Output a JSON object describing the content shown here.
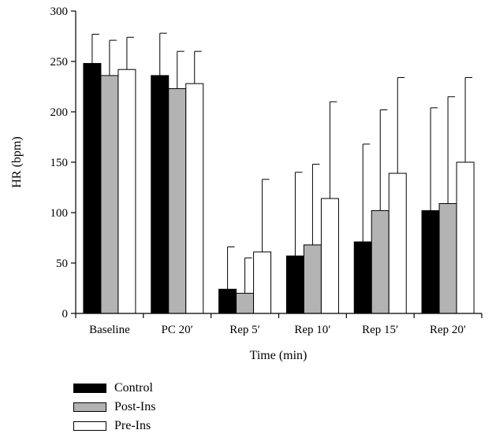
{
  "chart_data": {
    "type": "bar",
    "title": "",
    "xlabel": "Time (min)",
    "ylabel": "HR (bpm)",
    "ylim": [
      0,
      300
    ],
    "yticks": [
      0,
      50,
      100,
      150,
      200,
      250,
      300
    ],
    "categories": [
      "Baseline",
      "PC 20′",
      "Rep 5′",
      "Rep 10′",
      "Rep 15′",
      "Rep 20′"
    ],
    "series": [
      {
        "name": "Control",
        "color": "#000000",
        "values": [
          248,
          236,
          24,
          57,
          71,
          102
        ],
        "errors": [
          29,
          42,
          42,
          83,
          97,
          102
        ]
      },
      {
        "name": "Post-Ins",
        "color": "#b3b3b3",
        "values": [
          236,
          223,
          20,
          68,
          102,
          109
        ],
        "errors": [
          35,
          37,
          35,
          80,
          100,
          106
        ]
      },
      {
        "name": "Pre-Ins",
        "color": "#ffffff",
        "values": [
          242,
          228,
          61,
          114,
          139,
          150
        ],
        "errors": [
          32,
          32,
          72,
          96,
          95,
          84
        ]
      }
    ],
    "grid": false,
    "legend_position": "bottom-left"
  }
}
